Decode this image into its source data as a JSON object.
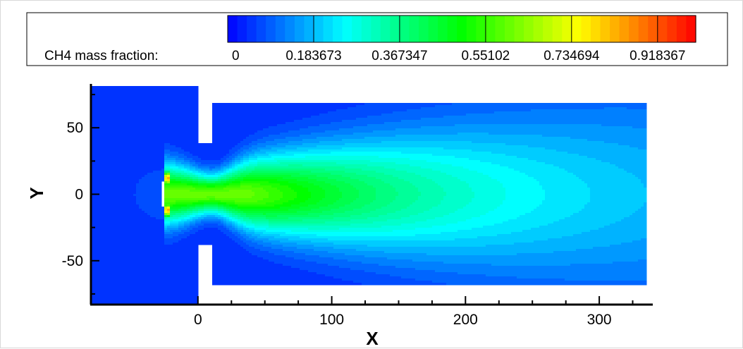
{
  "chart_data": {
    "type": "heatmap",
    "variable": "CH4 mass fraction",
    "legend": {
      "title": "CH4 mass fraction:",
      "levels": [
        "0",
        "0.183673",
        "0.367347",
        "0.55102",
        "0.734694",
        "0.918367"
      ],
      "range": [
        0,
        1
      ]
    },
    "xlabel": "X",
    "ylabel": "Y",
    "xlim": [
      -80,
      340
    ],
    "ylim": [
      -83,
      83
    ],
    "xticks": [
      "0",
      "100",
      "200",
      "300"
    ],
    "yticks": [
      "50",
      "0",
      "-50"
    ],
    "geometry": {
      "inlet_box": {
        "x": [
          -80,
          0
        ],
        "y": [
          -82,
          82
        ]
      },
      "main_channel": {
        "x": [
          10,
          336
        ],
        "y": [
          -68,
          68
        ]
      },
      "orifice_half_height": 38,
      "nozzle_face_x": -25
    },
    "field": {
      "jet_core_value": 0.6,
      "jet_exit_x": -25,
      "jet_hot_spots": [
        {
          "x": -23,
          "y": 12,
          "value": 0.95
        },
        {
          "x": -23,
          "y": -12,
          "value": 0.95
        }
      ],
      "ambient_value": 0.04
    },
    "colors": {
      "colormap": [
        "#0000ff",
        "#0080ff",
        "#00ffff",
        "#00ff80",
        "#00ff00",
        "#80ff00",
        "#ffff00",
        "#ff8000",
        "#ff0000"
      ]
    }
  }
}
